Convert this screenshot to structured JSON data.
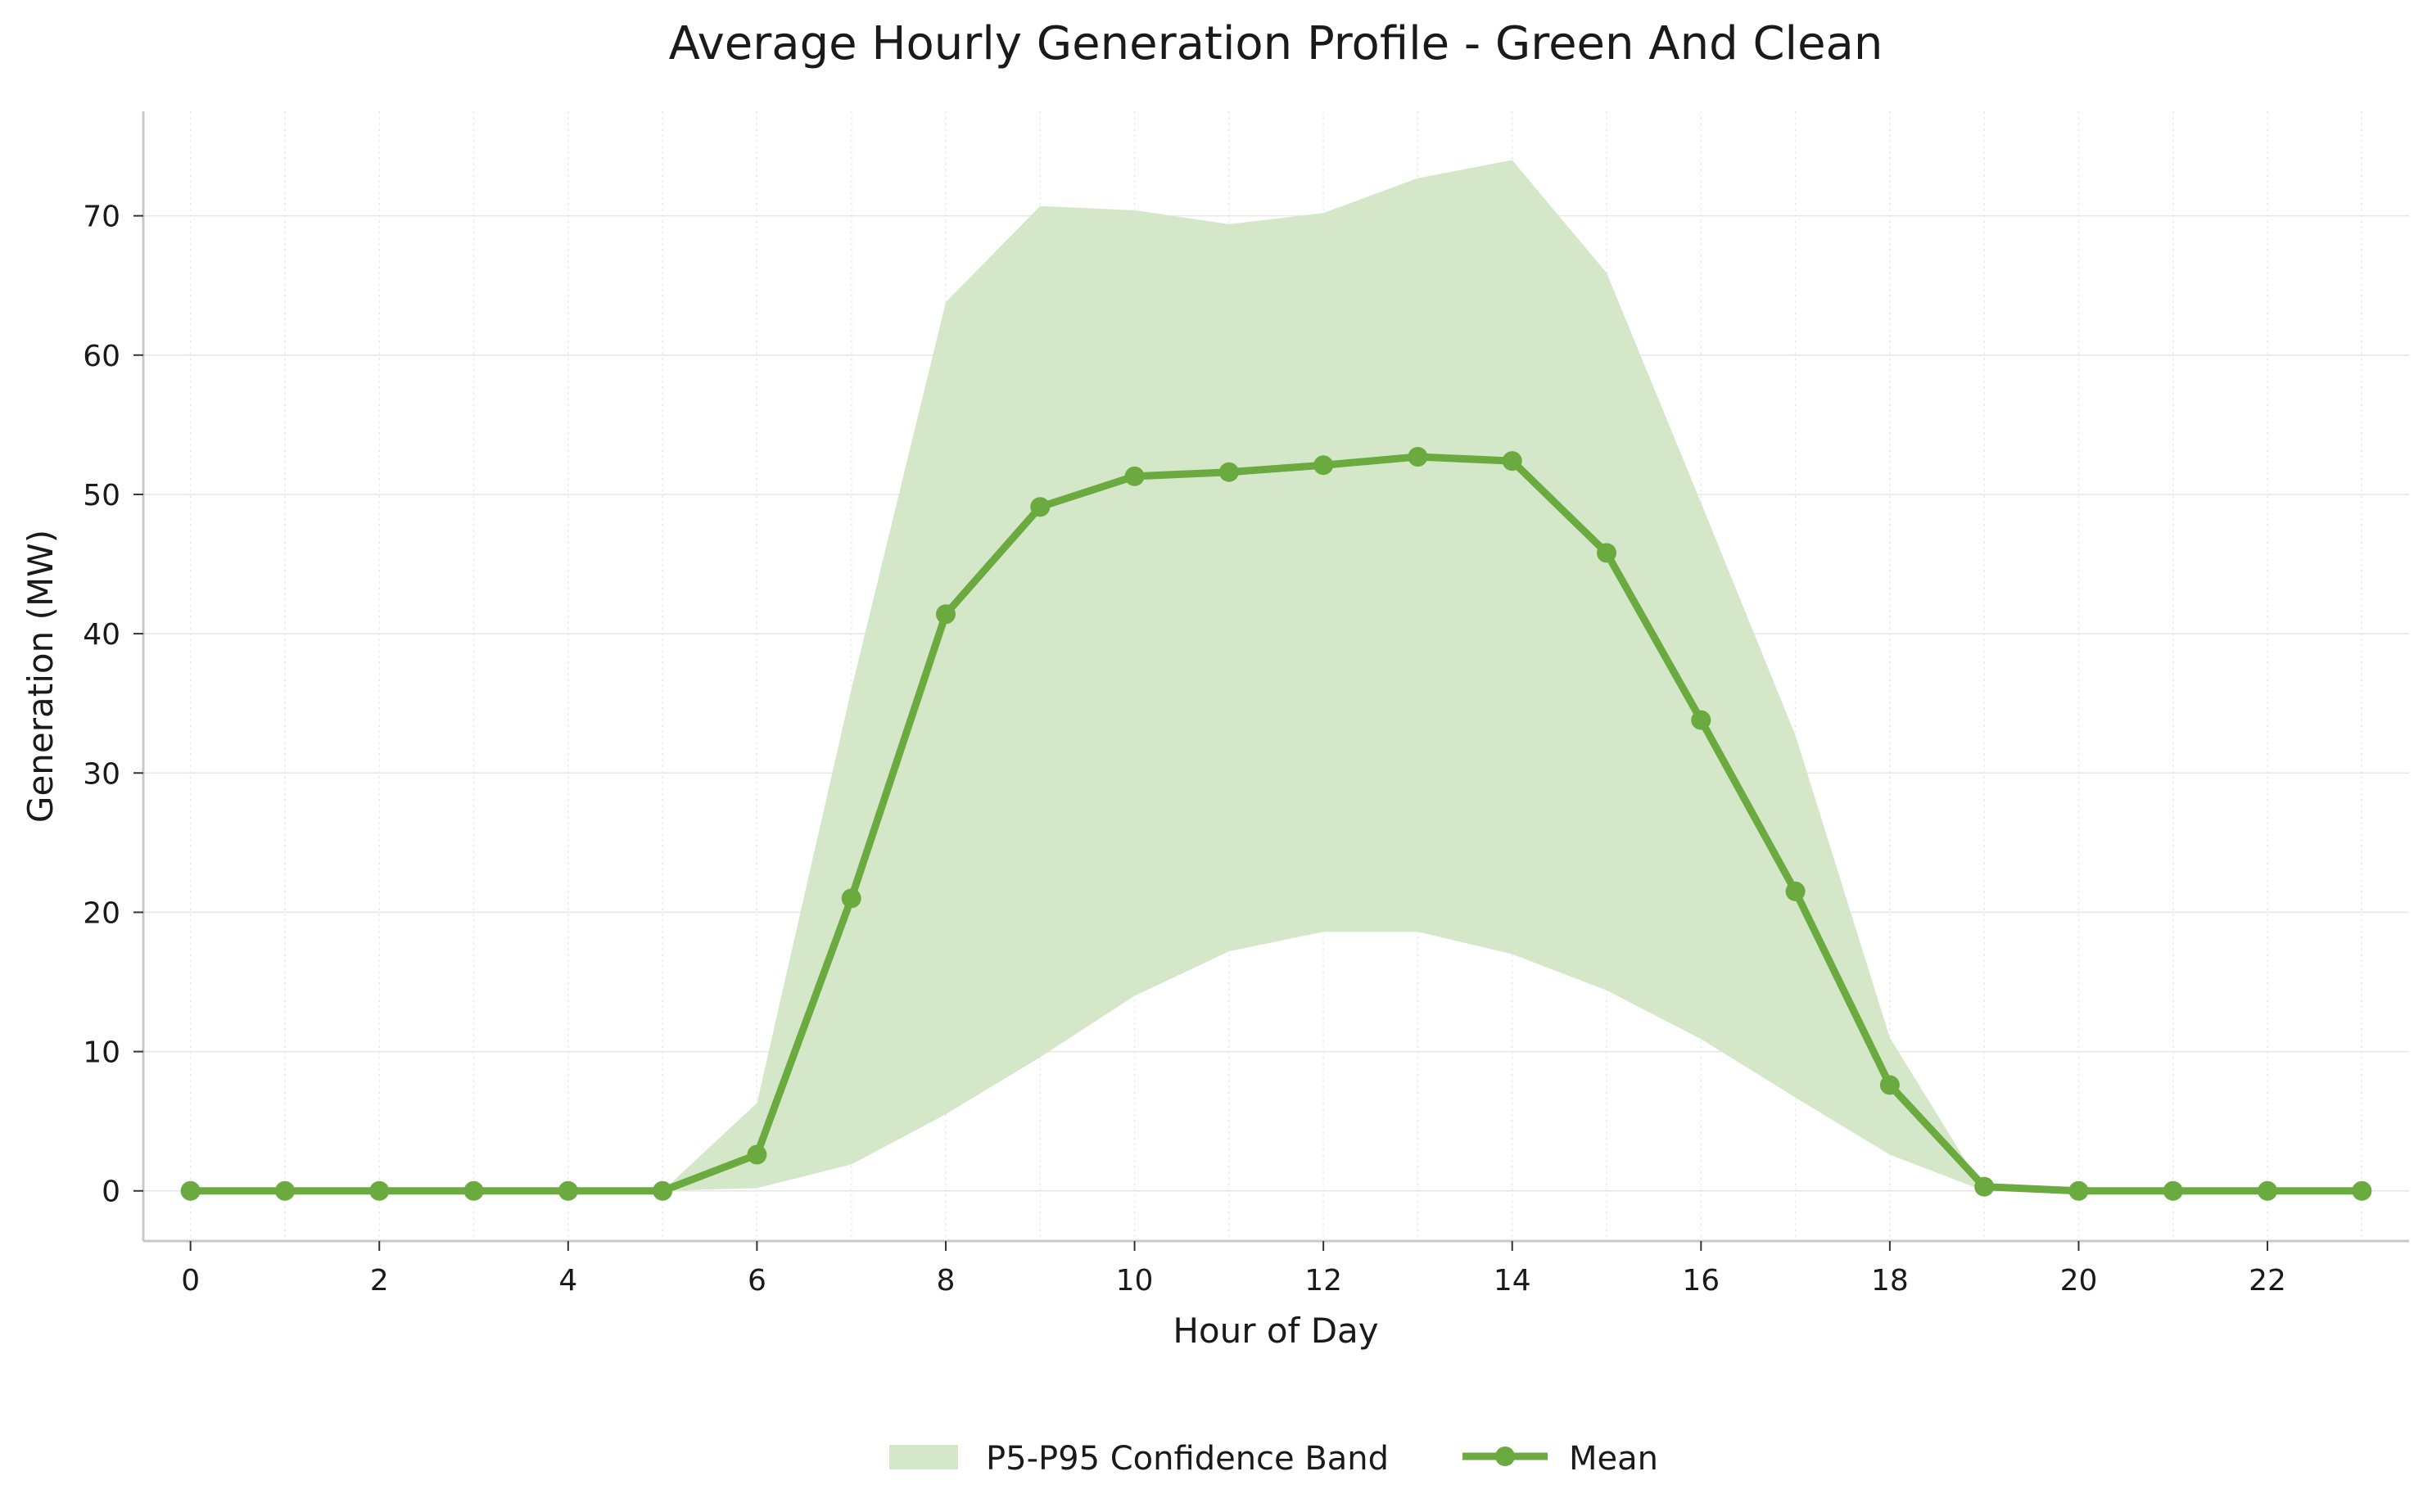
{
  "chart_data": {
    "type": "line",
    "title": "Average Hourly Generation Profile - Green And Clean",
    "xlabel": "Hour of Day",
    "ylabel": "Generation (MW)",
    "xlim": [
      -0.5,
      23.5
    ],
    "ylim": [
      -3.6,
      77.5
    ],
    "x_ticks": [
      0,
      2,
      4,
      6,
      8,
      10,
      12,
      14,
      16,
      18,
      20,
      22
    ],
    "y_ticks": [
      0,
      10,
      20,
      30,
      40,
      50,
      60,
      70
    ],
    "grid": true,
    "legend_position": "bottom-center",
    "colors": {
      "line": "#6aaa3f",
      "band": "#d4e7c9"
    },
    "x": [
      0,
      1,
      2,
      3,
      4,
      5,
      6,
      7,
      8,
      9,
      10,
      11,
      12,
      13,
      14,
      15,
      16,
      17,
      18,
      19,
      20,
      21,
      22,
      23
    ],
    "series": [
      {
        "name": "Mean",
        "kind": "line",
        "values": [
          0,
          0,
          0,
          0,
          0,
          0,
          2.6,
          21.0,
          41.4,
          49.1,
          51.3,
          51.6,
          52.1,
          52.7,
          52.4,
          45.8,
          33.8,
          21.5,
          7.6,
          0.3,
          0,
          0,
          0,
          0
        ]
      },
      {
        "name": "P5-P95 Confidence Band",
        "kind": "band",
        "lower": [
          0,
          0,
          0,
          0,
          0,
          0,
          0.2,
          1.9,
          5.5,
          9.6,
          14.0,
          17.2,
          18.6,
          18.6,
          17.0,
          14.4,
          10.9,
          6.7,
          2.6,
          0,
          0,
          0,
          0,
          0
        ],
        "upper": [
          0,
          0,
          0,
          0,
          0,
          0,
          6.3,
          36.0,
          63.8,
          70.7,
          70.4,
          69.4,
          70.2,
          72.7,
          74.0,
          65.9,
          49.4,
          32.7,
          11.0,
          0,
          0,
          0,
          0,
          0
        ]
      }
    ]
  }
}
